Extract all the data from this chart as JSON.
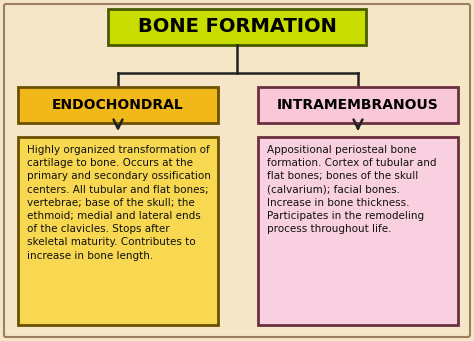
{
  "background_color": "#f5e6c8",
  "outer_border_color": "#9b8060",
  "title_text": "BONE FORMATION",
  "title_bg": "#c8dc00",
  "title_border": "#4a5a00",
  "title_text_color": "#000000",
  "left_header": "ENDOCHONDRAL",
  "left_header_bg": "#f0b818",
  "left_header_border": "#6a5000",
  "left_header_text_color": "#000000",
  "right_header": "INTRAMEMBRANOUS",
  "right_header_bg": "#f8c8d8",
  "right_header_border": "#6a3040",
  "right_header_text_color": "#000000",
  "left_body_bg": "#f8d850",
  "left_body_border": "#6a5000",
  "right_body_bg": "#f8d0e0",
  "right_body_border": "#6a3040",
  "left_body_text": "Highly organized transformation of\ncartilage to bone. Occurs at the\nprimary and secondary ossification\ncenters. All tubular and flat bones;\nvertebrae; base of the skull; the\nethmoid; medial and lateral ends\nof the clavicles. Stops after\nskeletal maturity. Contributes to\nincrease in bone length.",
  "right_body_text": "Appositional periosteal bone\nformation. Cortex of tubular and\nflat bones; bones of the skull\n(calvarium); facial bones.\nIncrease in bone thickness.\nParticipates in the remodeling\nprocess throughout life.",
  "arrow_color": "#222222",
  "line_color": "#222222",
  "body_text_color": "#111111",
  "figw": 4.74,
  "figh": 3.41,
  "dpi": 100
}
